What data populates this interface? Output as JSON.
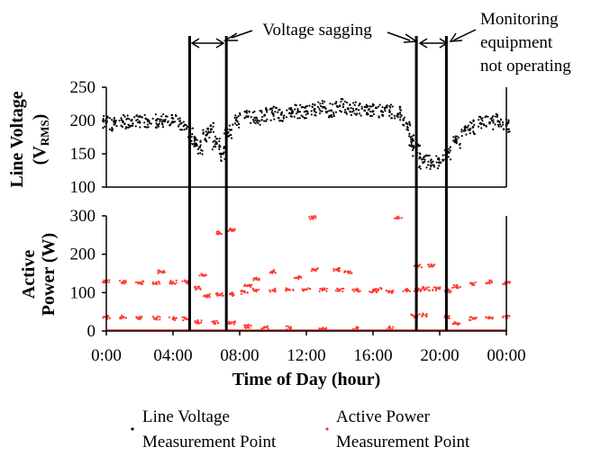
{
  "chart_data": [
    {
      "type": "scatter",
      "name": "line-voltage",
      "ylabel_main": "Line Voltage",
      "ylabel_unit_prefix": "(V",
      "ylabel_unit_sub": "RMS",
      "ylabel_unit_suffix": ")",
      "ylim": [
        100,
        250
      ],
      "yticks": [
        "250",
        "200",
        "150",
        "100"
      ],
      "ytick_values": [
        250,
        200,
        150,
        100
      ],
      "xlim": [
        0,
        24
      ],
      "color": "#000000",
      "series": [
        {
          "name": "Line Voltage Measurement Point",
          "points": [
            [
              0,
              197
            ],
            [
              0.5,
              195
            ],
            [
              1,
              198
            ],
            [
              1.5,
              200
            ],
            [
              2,
              197
            ],
            [
              2.5,
              199
            ],
            [
              3,
              200
            ],
            [
              3.5,
              199
            ],
            [
              4,
              198
            ],
            [
              4.5,
              196
            ],
            [
              5,
              185
            ],
            [
              5.3,
              165
            ],
            [
              5.6,
              160
            ],
            [
              6,
              178
            ],
            [
              6.3,
              187
            ],
            [
              6.6,
              167
            ],
            [
              7,
              150
            ],
            [
              7.3,
              182
            ],
            [
              7.8,
              200
            ],
            [
              8.5,
              206
            ],
            [
              9,
              204
            ],
            [
              9.5,
              208
            ],
            [
              10,
              210
            ],
            [
              10.5,
              209
            ],
            [
              11,
              211
            ],
            [
              11.5,
              213
            ],
            [
              12,
              214
            ],
            [
              12.5,
              217
            ],
            [
              13,
              220
            ],
            [
              13.5,
              215
            ],
            [
              14,
              222
            ],
            [
              14.5,
              218
            ],
            [
              15,
              217
            ],
            [
              15.5,
              215
            ],
            [
              16,
              214
            ],
            [
              16.5,
              214
            ],
            [
              17,
              213
            ],
            [
              17.5,
              210
            ],
            [
              18,
              196
            ],
            [
              18.4,
              170
            ],
            [
              18.6,
              155
            ],
            [
              19,
              137
            ],
            [
              19.5,
              137
            ],
            [
              20,
              137
            ],
            [
              20.5,
              152
            ],
            [
              21,
              168
            ],
            [
              21.5,
              185
            ],
            [
              22,
              190
            ],
            [
              22.5,
              195
            ],
            [
              23,
              197
            ],
            [
              23.5,
              199
            ],
            [
              24,
              193
            ]
          ]
        }
      ]
    },
    {
      "type": "scatter",
      "name": "active-power",
      "ylabel_line1": "Active",
      "ylabel_line2": "Power (W)",
      "ylim": [
        0,
        300
      ],
      "yticks": [
        "300",
        "200",
        "100",
        "0"
      ],
      "ytick_values": [
        300,
        200,
        100,
        0
      ],
      "xlim": [
        0,
        24
      ],
      "xticks": [
        "0:00",
        "04:00",
        "08:00",
        "12:00",
        "16:00",
        "20:00",
        "00:00"
      ],
      "xtick_values": [
        0,
        4,
        8,
        12,
        16,
        20,
        24
      ],
      "xlabel": "Time of Day (hour)",
      "color": "#ff3b30",
      "series": [
        {
          "name": "Active Power Measurement Point",
          "points": [
            [
              0,
              128
            ],
            [
              1,
              127
            ],
            [
              2,
              126
            ],
            [
              3,
              126
            ],
            [
              4,
              127
            ],
            [
              4.8,
              128
            ],
            [
              5.5,
              112
            ],
            [
              6,
              92
            ],
            [
              6.8,
              94
            ],
            [
              7.5,
              96
            ],
            [
              8.3,
              101
            ],
            [
              9,
              107
            ],
            [
              10,
              106
            ],
            [
              11,
              107
            ],
            [
              12,
              108
            ],
            [
              13,
              107
            ],
            [
              14,
              106
            ],
            [
              15,
              106
            ],
            [
              16,
              104
            ],
            [
              17,
              103
            ],
            [
              18,
              106
            ],
            [
              18.7,
              108
            ],
            [
              19.2,
              110
            ],
            [
              19.8,
              110
            ],
            [
              20.5,
              105
            ],
            [
              21,
              115
            ],
            [
              22,
              124
            ],
            [
              23,
              128
            ],
            [
              24,
              126
            ],
            [
              0,
              36
            ],
            [
              1,
              36
            ],
            [
              2,
              35
            ],
            [
              3,
              34
            ],
            [
              4,
              32
            ],
            [
              4.8,
              32
            ],
            [
              5.5,
              24
            ],
            [
              6.5,
              22
            ],
            [
              7.5,
              22
            ],
            [
              8.5,
              12
            ],
            [
              9.5,
              10
            ],
            [
              11,
              8
            ],
            [
              13,
              6
            ],
            [
              15,
              7
            ],
            [
              17,
              8
            ],
            [
              18.5,
              38
            ],
            [
              19,
              42
            ],
            [
              20.5,
              36
            ],
            [
              21,
              20
            ],
            [
              22,
              32
            ],
            [
              23,
              36
            ],
            [
              24,
              37
            ],
            [
              6.8,
              255
            ],
            [
              7.5,
              262
            ],
            [
              8.5,
              118
            ],
            [
              9,
              135
            ],
            [
              10,
              155
            ],
            [
              11.5,
              140
            ],
            [
              12.5,
              160
            ],
            [
              13.8,
              160
            ],
            [
              14.5,
              155
            ],
            [
              12.4,
              295
            ],
            [
              17.5,
              296
            ],
            [
              18.7,
              170
            ],
            [
              19.5,
              170
            ],
            [
              16.3,
              108
            ],
            [
              5.8,
              145
            ],
            [
              3.3,
              154
            ]
          ]
        }
      ]
    }
  ],
  "vertical_lines_hours": [
    5.0,
    7.2,
    18.6,
    20.4
  ],
  "annotations": {
    "sagging": "Voltage sagging",
    "monitor_line1": "Monitoring",
    "monitor_line2": "equipment",
    "monitor_line3": "not operating"
  },
  "legend": {
    "voltage_line1": "Line Voltage",
    "voltage_line2": "Measurement Point",
    "power_line1": "Active Power",
    "power_line2": "Measurement Point",
    "voltage_color": "#000000",
    "power_color": "#ff3b30"
  }
}
